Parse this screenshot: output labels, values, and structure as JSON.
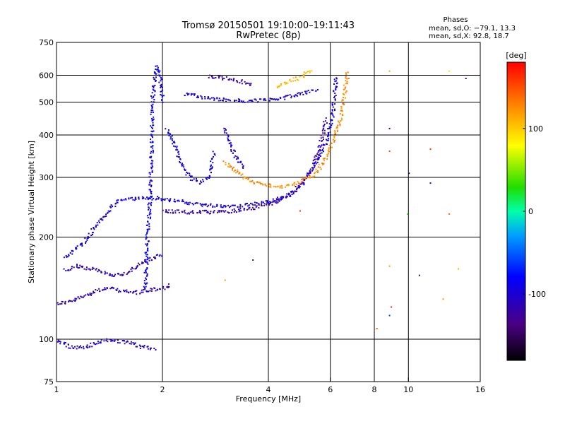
{
  "chart_data": {
    "type": "scatter",
    "title": "Tromsø 20150501 19:10:00–19:11:43",
    "subtitle": "RwPretec (8p)",
    "xlabel": "Frequency [MHz]",
    "ylabel": "Stationary phase Virtual Height [km]",
    "x_scale": "log",
    "y_scale": "log",
    "xlim": [
      1,
      16
    ],
    "ylim": [
      75,
      750
    ],
    "x_ticks": [
      1,
      2,
      4,
      6,
      8,
      10,
      16
    ],
    "x_tick_labels": [
      "1",
      "2",
      "4",
      "6",
      "8",
      "10",
      "16"
    ],
    "y_ticks": [
      75,
      100,
      200,
      300,
      400,
      500,
      600,
      750
    ],
    "y_tick_labels": [
      "75",
      "100",
      "200",
      "300",
      "400",
      "500",
      "600",
      "750"
    ],
    "grid": true,
    "phases_info": {
      "heading": "Phases",
      "line_o": "mean, sd,O: −79.1, 13.3",
      "line_x": "mean, sd,X:  92.8, 18.7"
    },
    "colorbar": {
      "label": "[deg]",
      "range": [
        -180,
        180
      ],
      "ticks": [
        100,
        0,
        -100
      ],
      "tick_labels": [
        "100",
        "0",
        "-100"
      ]
    },
    "traces": [
      {
        "name": "",
        "phase": -115,
        "points": [
          [
            1.0,
            128
          ],
          [
            1.1,
            130
          ],
          [
            1.2,
            135
          ],
          [
            1.3,
            140
          ],
          [
            1.4,
            142
          ],
          [
            1.5,
            140
          ],
          [
            1.6,
            138
          ],
          [
            1.7,
            138
          ],
          [
            1.8,
            140
          ],
          [
            1.9,
            141
          ],
          [
            2.0,
            142
          ],
          [
            2.1,
            145
          ]
        ]
      },
      {
        "name": "",
        "phase": -112,
        "points": [
          [
            1.05,
            160
          ],
          [
            1.15,
            165
          ],
          [
            1.3,
            160
          ],
          [
            1.45,
            155
          ],
          [
            1.6,
            158
          ],
          [
            1.75,
            170
          ],
          [
            1.9,
            175
          ],
          [
            2.0,
            180
          ]
        ]
      },
      {
        "name": "",
        "phase": -95,
        "points": [
          [
            1.05,
            175
          ],
          [
            1.2,
            195
          ],
          [
            1.35,
            230
          ],
          [
            1.5,
            258
          ],
          [
            1.7,
            262
          ],
          [
            1.9,
            262
          ],
          [
            2.1,
            258
          ],
          [
            2.3,
            255
          ],
          [
            2.6,
            250
          ],
          [
            3.0,
            248
          ],
          [
            3.5,
            250
          ],
          [
            4.0,
            255
          ],
          [
            4.5,
            265
          ],
          [
            5.0,
            290
          ],
          [
            5.4,
            330
          ],
          [
            5.8,
            380
          ],
          [
            6.0,
            430
          ],
          [
            6.1,
            480
          ],
          [
            6.15,
            540
          ],
          [
            6.2,
            600
          ]
        ]
      },
      {
        "name": "",
        "phase": -118,
        "points": [
          [
            2.0,
            240
          ],
          [
            2.3,
            238
          ],
          [
            2.6,
            238
          ],
          [
            3.0,
            239
          ],
          [
            3.4,
            242
          ],
          [
            3.8,
            248
          ],
          [
            4.2,
            256
          ],
          [
            4.6,
            268
          ],
          [
            5.0,
            290
          ],
          [
            5.3,
            320
          ],
          [
            5.5,
            355
          ],
          [
            5.7,
            400
          ],
          [
            5.8,
            450
          ]
        ]
      },
      {
        "name": "",
        "phase": -88,
        "points": [
          [
            1.78,
            140
          ],
          [
            1.8,
            190
          ],
          [
            1.83,
            250
          ],
          [
            1.85,
            330
          ],
          [
            1.86,
            420
          ],
          [
            1.87,
            520
          ],
          [
            1.89,
            600
          ],
          [
            1.92,
            640
          ],
          [
            1.96,
            600
          ],
          [
            2.0,
            500
          ]
        ]
      },
      {
        "name": "",
        "phase": -92,
        "points": [
          [
            2.05,
            420
          ],
          [
            2.15,
            380
          ],
          [
            2.25,
            330
          ],
          [
            2.4,
            300
          ],
          [
            2.55,
            290
          ],
          [
            2.7,
            300
          ],
          [
            2.8,
            360
          ]
        ]
      },
      {
        "name": "",
        "phase": -98,
        "points": [
          [
            2.3,
            530
          ],
          [
            2.6,
            520
          ],
          [
            3.0,
            510
          ],
          [
            3.5,
            505
          ],
          [
            4.0,
            510
          ],
          [
            4.5,
            520
          ],
          [
            5.0,
            535
          ],
          [
            5.5,
            545
          ]
        ]
      },
      {
        "name": "",
        "phase": -122,
        "points": [
          [
            2.7,
            600
          ],
          [
            3.0,
            590
          ],
          [
            3.3,
            580
          ],
          [
            3.6,
            565
          ]
        ]
      },
      {
        "name": "",
        "phase": 125,
        "points": [
          [
            3.0,
            335
          ],
          [
            3.2,
            315
          ],
          [
            3.4,
            300
          ],
          [
            3.6,
            292
          ],
          [
            3.8,
            288
          ],
          [
            4.0,
            286
          ],
          [
            4.3,
            282
          ],
          [
            4.6,
            285
          ],
          [
            4.9,
            292
          ],
          [
            5.2,
            300
          ],
          [
            5.5,
            315
          ],
          [
            5.8,
            345
          ],
          [
            6.1,
            390
          ],
          [
            6.35,
            440
          ],
          [
            6.5,
            500
          ],
          [
            6.6,
            560
          ],
          [
            6.7,
            620
          ]
        ]
      },
      {
        "name": "",
        "phase": 108,
        "points": [
          [
            4.2,
            560
          ],
          [
            4.6,
            580
          ],
          [
            5.0,
            600
          ],
          [
            5.3,
            630
          ]
        ]
      },
      {
        "name": "",
        "phase": -98,
        "points": [
          [
            3.0,
            420
          ],
          [
            3.1,
            380
          ],
          [
            3.2,
            350
          ],
          [
            3.4,
            320
          ]
        ]
      },
      {
        "name": "",
        "phase": -105,
        "points": [
          [
            1.0,
            100
          ],
          [
            1.1,
            95
          ],
          [
            1.2,
            95
          ],
          [
            1.3,
            98
          ],
          [
            1.4,
            100
          ],
          [
            1.6,
            98
          ],
          [
            1.9,
            93
          ]
        ]
      }
    ],
    "scattered_points": [
      {
        "x": 8.8,
        "y": 620,
        "phase": 115
      },
      {
        "x": 8.8,
        "y": 420,
        "phase": -130
      },
      {
        "x": 8.8,
        "y": 360,
        "phase": 150
      },
      {
        "x": 10.0,
        "y": 310,
        "phase": -120
      },
      {
        "x": 11.5,
        "y": 365,
        "phase": 160
      },
      {
        "x": 11.5,
        "y": 290,
        "phase": -140
      },
      {
        "x": 9.9,
        "y": 235,
        "phase": 30
      },
      {
        "x": 13.0,
        "y": 235,
        "phase": 140
      },
      {
        "x": 8.8,
        "y": 165,
        "phase": 120
      },
      {
        "x": 10.7,
        "y": 155,
        "phase": -100
      },
      {
        "x": 8.9,
        "y": 125,
        "phase": 170
      },
      {
        "x": 8.8,
        "y": 118,
        "phase": -60
      },
      {
        "x": 12.5,
        "y": 132,
        "phase": 120
      },
      {
        "x": 8.1,
        "y": 108,
        "phase": 140
      },
      {
        "x": 13.8,
        "y": 162,
        "phase": 110
      },
      {
        "x": 3.0,
        "y": 150,
        "phase": 120
      },
      {
        "x": 3.6,
        "y": 172,
        "phase": -130
      },
      {
        "x": 4.9,
        "y": 240,
        "phase": 160
      },
      {
        "x": 13.0,
        "y": 620,
        "phase": 90
      },
      {
        "x": 14.5,
        "y": 590,
        "phase": -140
      }
    ]
  }
}
